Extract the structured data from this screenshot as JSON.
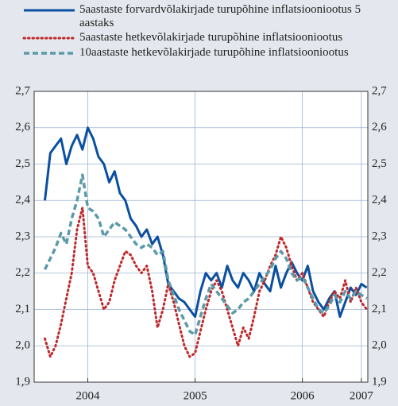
{
  "chart_data": {
    "type": "line",
    "x": [
      2004.1,
      2004.15,
      2004.2,
      2004.25,
      2004.3,
      2004.35,
      2004.4,
      2004.45,
      2004.5,
      2004.55,
      2004.6,
      2004.65,
      2004.7,
      2004.75,
      2004.8,
      2004.85,
      2004.9,
      2004.95,
      2005.0,
      2005.05,
      2005.1,
      2005.15,
      2005.2,
      2005.25,
      2005.3,
      2005.35,
      2005.4,
      2005.45,
      2005.5,
      2005.55,
      2005.6,
      2005.65,
      2005.7,
      2005.75,
      2005.8,
      2005.85,
      2005.9,
      2005.95,
      2006.0,
      2006.05,
      2006.1,
      2006.15,
      2006.2,
      2006.25,
      2006.3,
      2006.35,
      2006.4,
      2006.45,
      2006.5,
      2006.55,
      2006.6,
      2006.65,
      2006.7,
      2006.75,
      2006.8,
      2006.85,
      2006.9,
      2006.95,
      2007.0,
      2007.05,
      2007.1
    ],
    "series": [
      {
        "name": "5aastaste forvardvõlakirjade turupõhine inflatsiooniootus 5 aastaks",
        "color": "#0b4fa0",
        "style": "solid",
        "values": [
          2.4,
          2.53,
          2.55,
          2.57,
          2.5,
          2.55,
          2.58,
          2.54,
          2.6,
          2.57,
          2.52,
          2.5,
          2.45,
          2.48,
          2.42,
          2.4,
          2.35,
          2.33,
          2.3,
          2.32,
          2.28,
          2.3,
          2.25,
          2.17,
          2.15,
          2.13,
          2.12,
          2.1,
          2.08,
          2.15,
          2.2,
          2.18,
          2.2,
          2.16,
          2.22,
          2.18,
          2.16,
          2.2,
          2.18,
          2.15,
          2.2,
          2.17,
          2.15,
          2.22,
          2.16,
          2.2,
          2.23,
          2.2,
          2.18,
          2.22,
          2.15,
          2.12,
          2.1,
          2.13,
          2.15,
          2.08,
          2.12,
          2.16,
          2.14,
          2.17,
          2.16
        ]
      },
      {
        "name": "5aastaste hetkevõlakirjade turupõhine inflatsiooniootus",
        "color": "#c0282a",
        "style": "dotted",
        "values": [
          2.02,
          1.97,
          2.0,
          2.06,
          2.13,
          2.2,
          2.32,
          2.38,
          2.22,
          2.2,
          2.15,
          2.1,
          2.12,
          2.18,
          2.22,
          2.26,
          2.25,
          2.22,
          2.2,
          2.22,
          2.15,
          2.05,
          2.1,
          2.17,
          2.12,
          2.06,
          2.0,
          1.97,
          1.98,
          2.04,
          2.1,
          2.15,
          2.18,
          2.15,
          2.1,
          2.05,
          2.0,
          2.05,
          2.02,
          2.08,
          2.15,
          2.18,
          2.22,
          2.25,
          2.3,
          2.27,
          2.22,
          2.18,
          2.2,
          2.16,
          2.12,
          2.1,
          2.08,
          2.12,
          2.15,
          2.13,
          2.18,
          2.12,
          2.16,
          2.12,
          2.1
        ]
      },
      {
        "name": "10aastaste hetkevõlakirjade turupõhine inflatsiooniootus",
        "color": "#5b9aa8",
        "style": "dashed",
        "values": [
          2.21,
          2.24,
          2.27,
          2.31,
          2.28,
          2.35,
          2.4,
          2.47,
          2.38,
          2.37,
          2.35,
          2.3,
          2.32,
          2.34,
          2.33,
          2.32,
          2.3,
          2.28,
          2.27,
          2.28,
          2.27,
          2.25,
          2.26,
          2.18,
          2.14,
          2.1,
          2.07,
          2.04,
          2.03,
          2.08,
          2.13,
          2.17,
          2.15,
          2.13,
          2.11,
          2.09,
          2.1,
          2.12,
          2.13,
          2.15,
          2.17,
          2.19,
          2.21,
          2.24,
          2.26,
          2.24,
          2.2,
          2.18,
          2.19,
          2.16,
          2.13,
          2.1,
          2.09,
          2.11,
          2.14,
          2.12,
          2.15,
          2.13,
          2.15,
          2.14,
          2.13
        ]
      }
    ],
    "xlim": [
      2004.0,
      2007.11
    ],
    "xticks": [
      {
        "value": 2004.5,
        "label": "2004"
      },
      {
        "value": 2005.5,
        "label": "2005"
      },
      {
        "value": 2006.5,
        "label": "2006"
      },
      {
        "value": 2007.05,
        "label": "2007"
      }
    ],
    "ylim": [
      1.9,
      2.7
    ],
    "yticks": [
      {
        "value": 1.9,
        "label": "1,9"
      },
      {
        "value": 2.0,
        "label": "2,0"
      },
      {
        "value": 2.1,
        "label": "2,1"
      },
      {
        "value": 2.2,
        "label": "2,2"
      },
      {
        "value": 2.3,
        "label": "2,3"
      },
      {
        "value": 2.4,
        "label": "2,4"
      },
      {
        "value": 2.5,
        "label": "2,5"
      },
      {
        "value": 2.6,
        "label": "2,6"
      },
      {
        "value": 2.7,
        "label": "2,7"
      }
    ],
    "grid": true
  }
}
